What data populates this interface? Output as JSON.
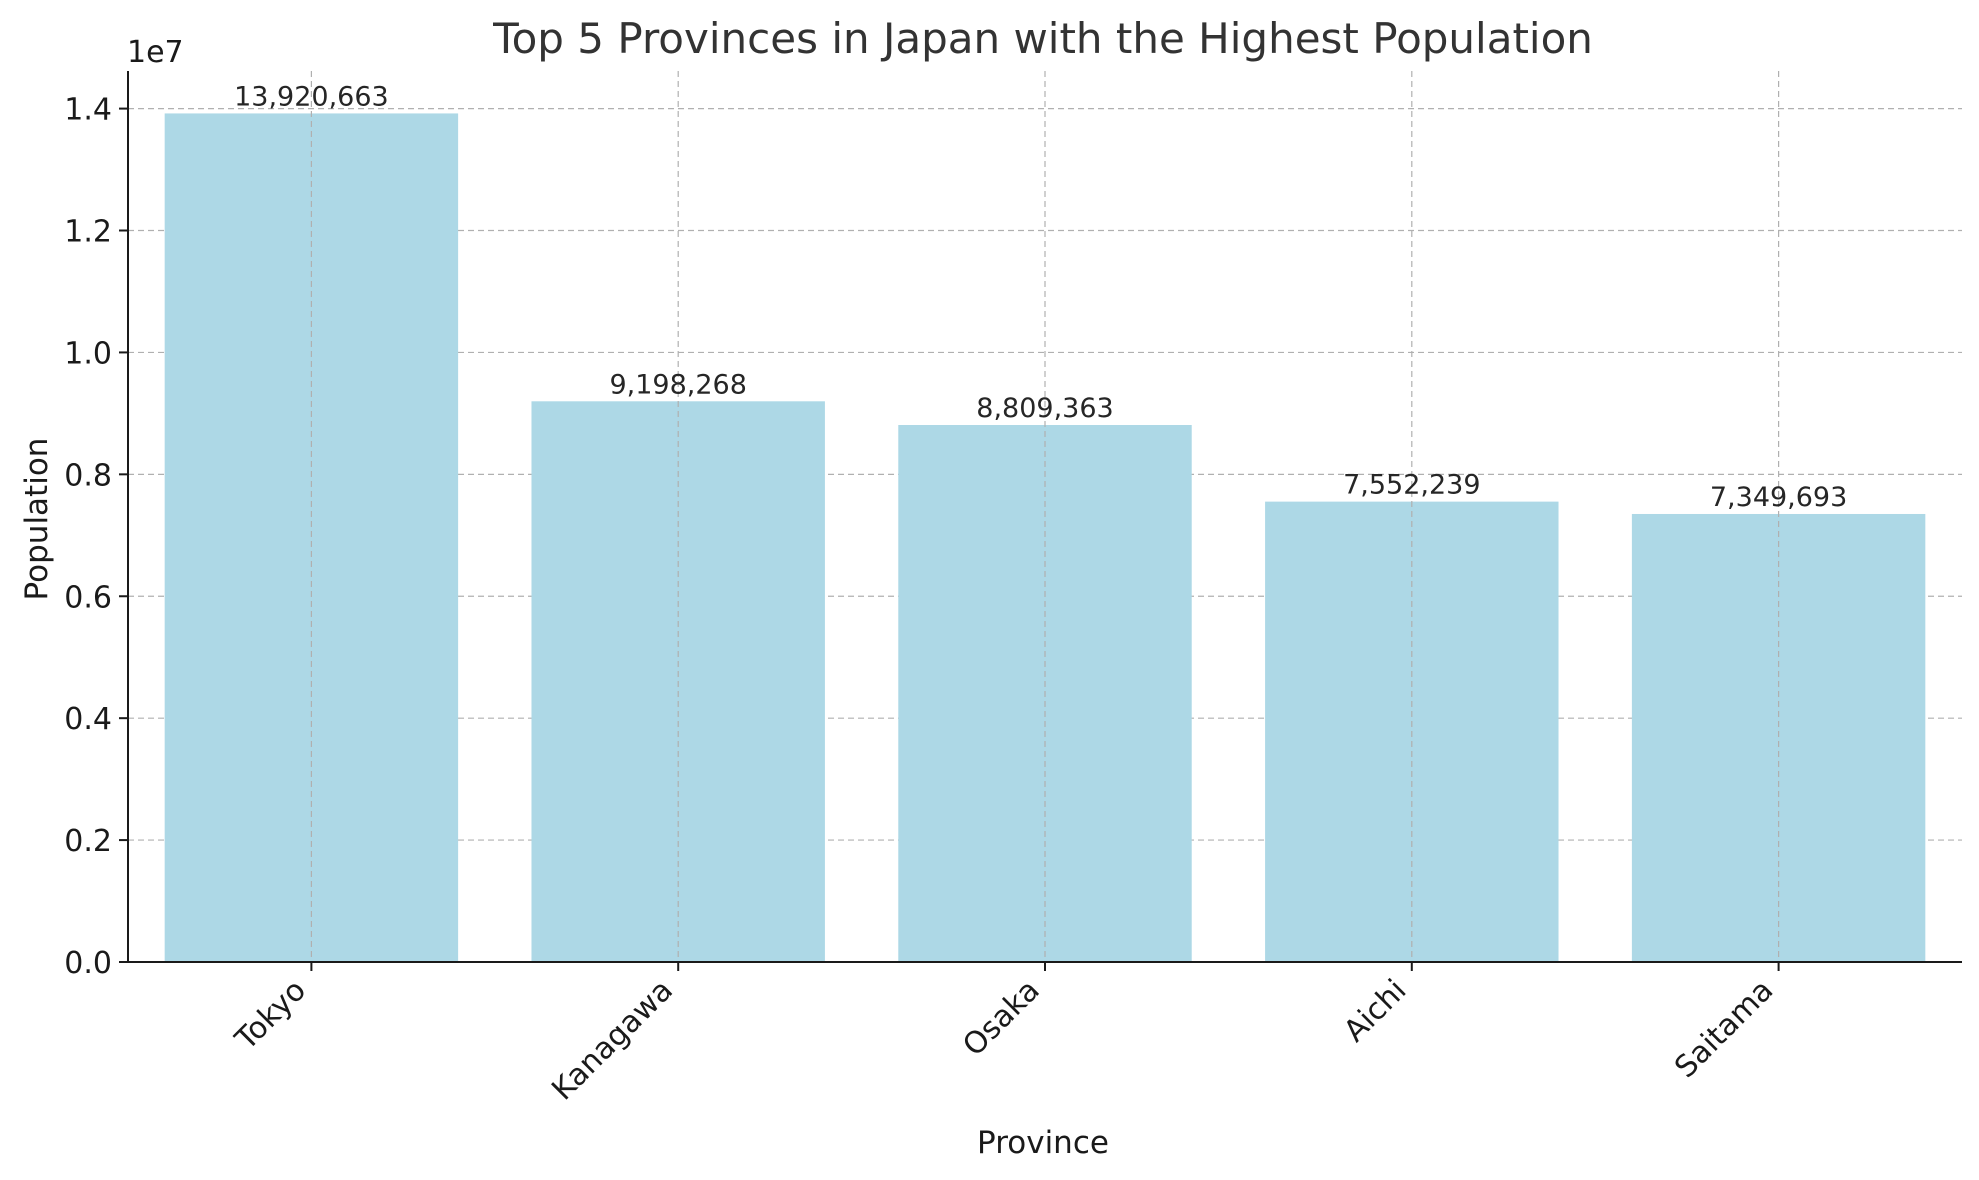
{
  "colors": {
    "bar": "#add8e6",
    "axis": "#1a1a1a",
    "grid": "#b0b0b0",
    "title": "#333333"
  },
  "chart_data": {
    "type": "bar",
    "title": "Top 5 Provinces in Japan with the Highest Population",
    "xlabel": "Province",
    "ylabel": "Population",
    "y_offset_label": "1e7",
    "categories": [
      "Tokyo",
      "Kanagawa",
      "Osaka",
      "Aichi",
      "Saitama"
    ],
    "values": [
      13920663,
      9198268,
      8809363,
      7552239,
      7349693
    ],
    "data_labels": [
      "13,920,663",
      "9,198,268",
      "8,809,363",
      "7,552,239",
      "7,349,693"
    ],
    "yticks": [
      0,
      2000000,
      4000000,
      6000000,
      8000000,
      10000000,
      12000000,
      14000000
    ],
    "ytick_labels": [
      "0.0",
      "0.2",
      "0.4",
      "0.6",
      "0.8",
      "1.0",
      "1.2",
      "1.4"
    ],
    "ylim": [
      0,
      14616696
    ],
    "grid": true,
    "legend": "none"
  }
}
